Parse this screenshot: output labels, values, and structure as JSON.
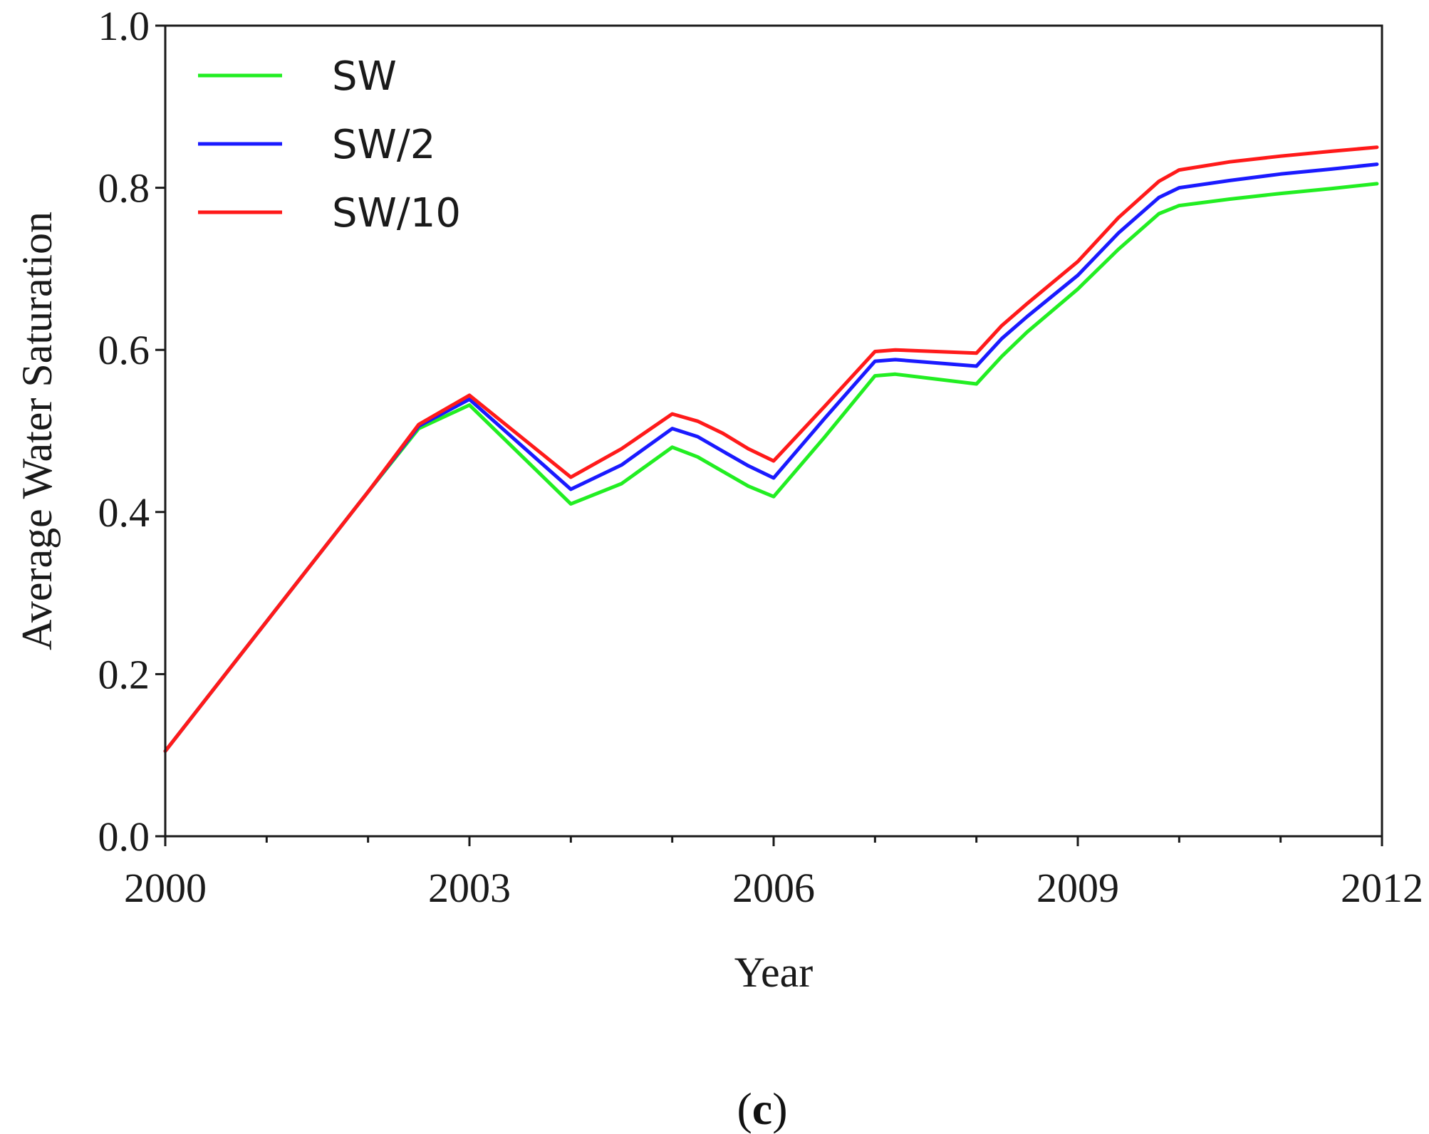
{
  "chart_data": {
    "type": "line",
    "title": "",
    "xlabel": "Year",
    "ylabel": "Average Water Saturation",
    "xlim": [
      2000,
      2012
    ],
    "ylim": [
      0.0,
      1.0
    ],
    "x_ticks": [
      2000,
      2003,
      2006,
      2009,
      2012
    ],
    "x_tick_labels": [
      "2000",
      "2003",
      "2006",
      "2009",
      "2012"
    ],
    "x_minor_ticks": [
      2001,
      2002,
      2004,
      2005,
      2007,
      2008,
      2010,
      2011
    ],
    "y_ticks": [
      0.0,
      0.2,
      0.4,
      0.6,
      0.8,
      1.0
    ],
    "y_tick_labels": [
      "0.0",
      "0.2",
      "0.4",
      "0.6",
      "0.8",
      "1.0"
    ],
    "grid": false,
    "legend_position": "top-left",
    "panel_label": {
      "open": "(",
      "letter": "c",
      "close": ")"
    },
    "series": [
      {
        "name": "SW",
        "color": "#22ee22",
        "x": [
          2000,
          2001,
          2002,
          2002.5,
          2003,
          2004,
          2004.5,
          2005,
          2005.25,
          2005.5,
          2005.75,
          2006,
          2006.5,
          2007,
          2007.2,
          2008,
          2008.25,
          2008.5,
          2009,
          2009.4,
          2009.8,
          2010,
          2010.5,
          2011,
          2011.5,
          2011.95
        ],
        "values": [
          0.105,
          0.265,
          0.425,
          0.503,
          0.532,
          0.41,
          0.435,
          0.48,
          0.468,
          0.45,
          0.432,
          0.419,
          0.492,
          0.568,
          0.57,
          0.558,
          0.592,
          0.622,
          0.675,
          0.724,
          0.768,
          0.778,
          0.786,
          0.793,
          0.799,
          0.805
        ]
      },
      {
        "name": "SW/2",
        "color": "#1a1aff",
        "x": [
          2000,
          2001,
          2002,
          2002.5,
          2003,
          2004,
          2004.5,
          2005,
          2005.25,
          2005.5,
          2005.75,
          2006,
          2006.5,
          2007,
          2007.2,
          2008,
          2008.25,
          2008.5,
          2009,
          2009.4,
          2009.8,
          2010,
          2010.5,
          2011,
          2011.5,
          2011.95
        ],
        "values": [
          0.105,
          0.265,
          0.425,
          0.506,
          0.539,
          0.428,
          0.458,
          0.503,
          0.493,
          0.475,
          0.457,
          0.442,
          0.515,
          0.586,
          0.588,
          0.58,
          0.614,
          0.641,
          0.692,
          0.744,
          0.788,
          0.8,
          0.809,
          0.817,
          0.823,
          0.829
        ]
      },
      {
        "name": "SW/10",
        "color": "#ff1a1a",
        "x": [
          2000,
          2001,
          2002,
          2002.5,
          2003,
          2004,
          2004.5,
          2005,
          2005.25,
          2005.5,
          2005.75,
          2006,
          2006.5,
          2007,
          2007.2,
          2008,
          2008.25,
          2008.5,
          2009,
          2009.4,
          2009.8,
          2010,
          2010.5,
          2011,
          2011.5,
          2011.95
        ],
        "values": [
          0.105,
          0.265,
          0.425,
          0.508,
          0.544,
          0.443,
          0.478,
          0.521,
          0.512,
          0.497,
          0.478,
          0.463,
          0.53,
          0.598,
          0.6,
          0.596,
          0.63,
          0.657,
          0.709,
          0.763,
          0.808,
          0.822,
          0.832,
          0.839,
          0.845,
          0.85
        ]
      }
    ]
  }
}
